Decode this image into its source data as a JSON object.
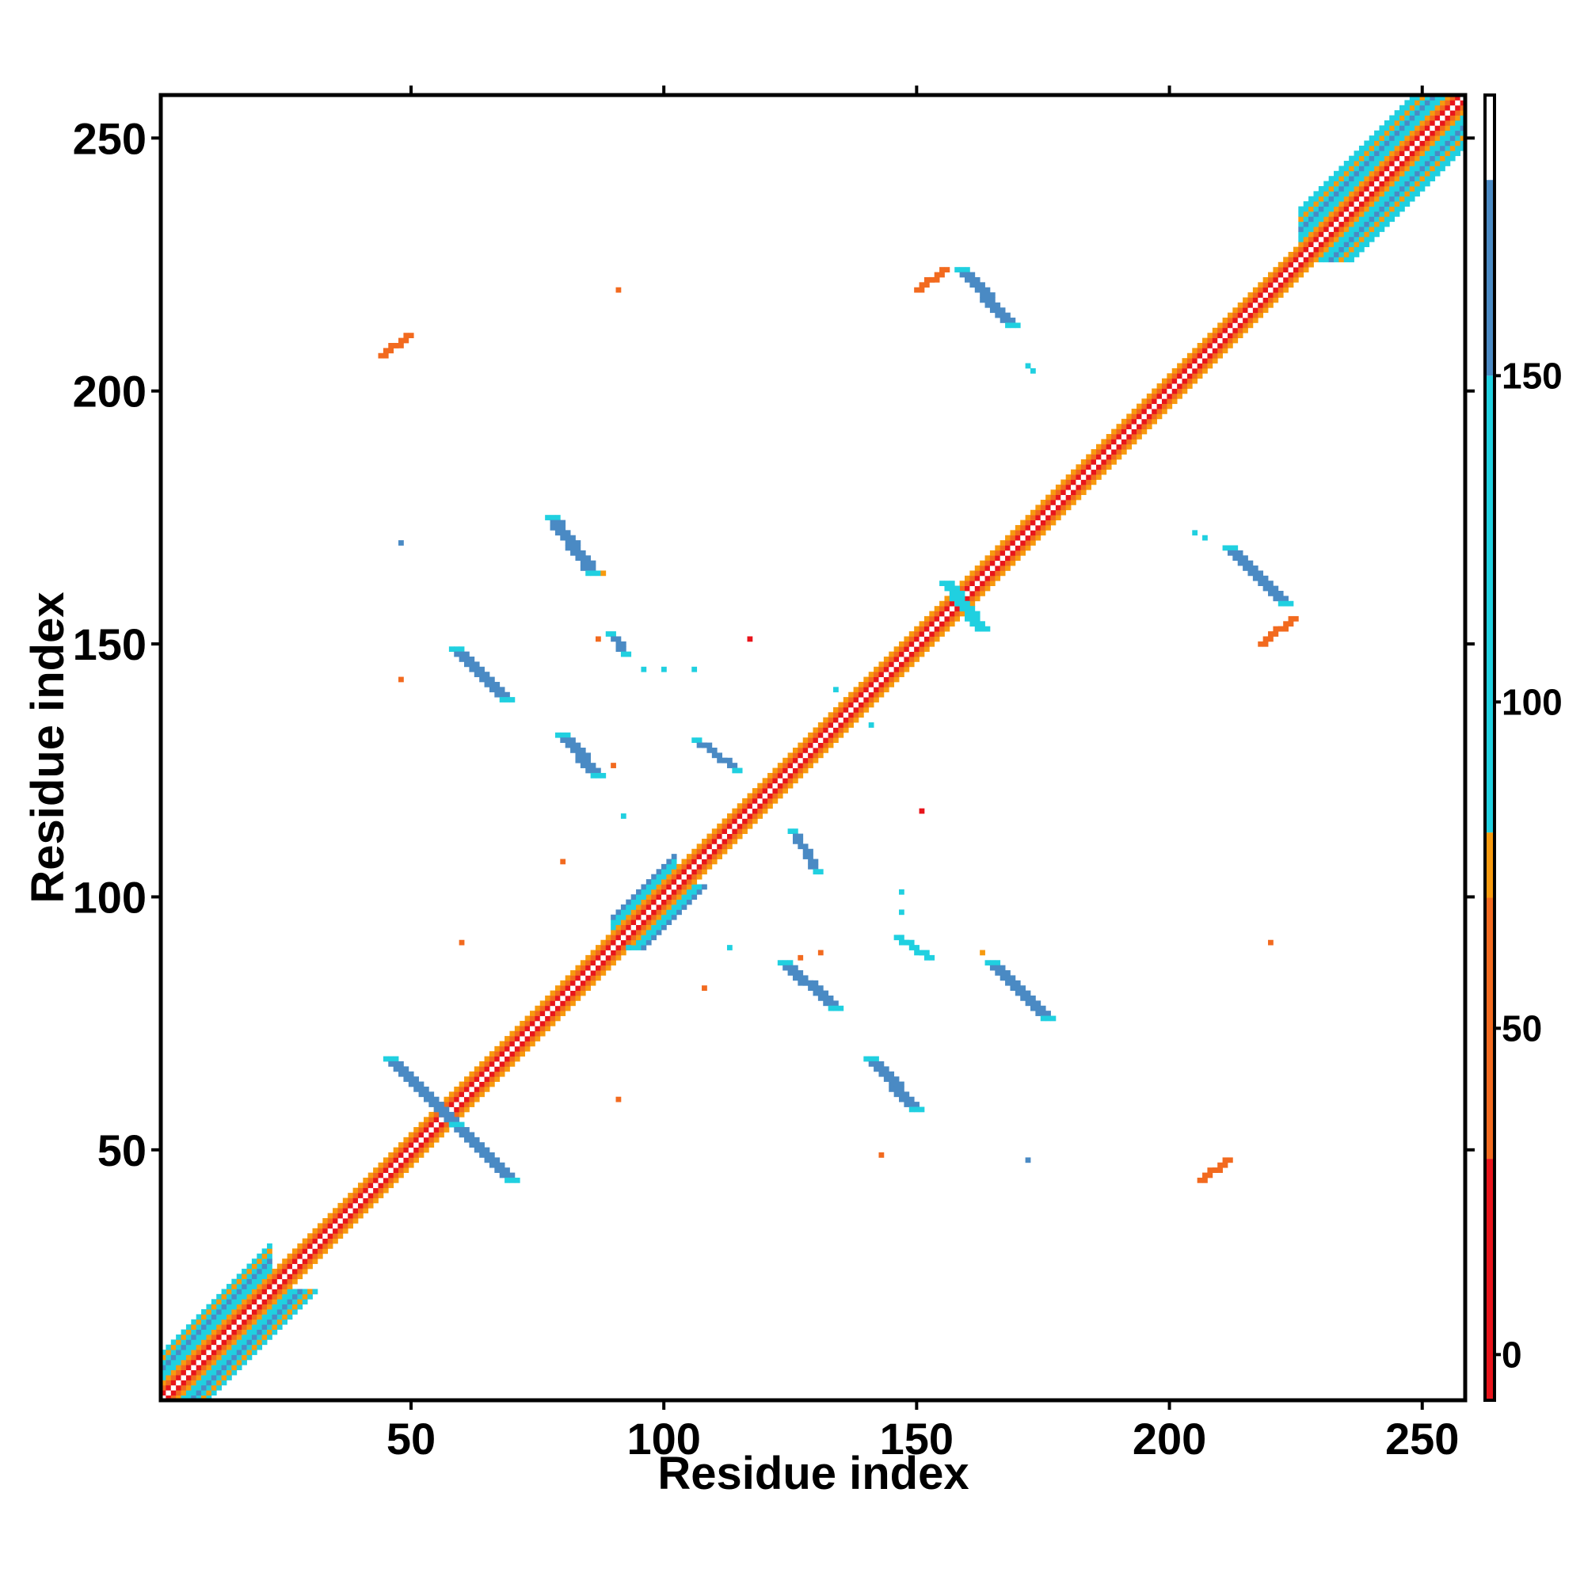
{
  "chart_data": {
    "type": "heatmap",
    "title": "",
    "xlabel": "Residue index",
    "ylabel": "Residue index",
    "xlim": [
      1,
      258
    ],
    "ylim": [
      1,
      258
    ],
    "xticks": [
      50,
      100,
      150,
      200,
      250
    ],
    "yticks": [
      50,
      100,
      150,
      200,
      250
    ],
    "grid": false,
    "colorbar": {
      "ticks": [
        0,
        50,
        100,
        150
      ],
      "range": [
        -7,
        193
      ],
      "bands": [
        {
          "from": -7,
          "to": 30,
          "color": "#e8141b"
        },
        {
          "from": 30,
          "to": 70,
          "color": "#f26a1f"
        },
        {
          "from": 70,
          "to": 80,
          "color": "#f79a0e"
        },
        {
          "from": 80,
          "to": 150,
          "color": "#20d0e0"
        },
        {
          "from": 150,
          "to": 180,
          "color": "#4a8ac4"
        },
        {
          "from": 180,
          "to": 193,
          "color": "#ffffff"
        }
      ]
    },
    "diagonal": {
      "from": 1,
      "to": 258
    },
    "diagonal_bulges": [
      {
        "from": 1,
        "to": 22,
        "width": 9
      },
      {
        "from": 90,
        "to": 102,
        "width": 6
      },
      {
        "from": 226,
        "to": 258,
        "width": 10
      }
    ],
    "contact_strips": [
      {
        "x": [
          45,
          58
        ],
        "y": [
          68,
          55
        ],
        "width": 3,
        "value": 160
      },
      {
        "x": [
          58,
          69
        ],
        "y": [
          55,
          44
        ],
        "width": 3,
        "value": 160
      },
      {
        "x": [
          58,
          68
        ],
        "y": [
          149,
          139
        ],
        "width": 3,
        "value": 160
      },
      {
        "x": [
          77,
          85
        ],
        "y": [
          175,
          164
        ],
        "width": 3,
        "value": 160
      },
      {
        "x": [
          79,
          86
        ],
        "y": [
          132,
          124
        ],
        "width": 3,
        "value": 160
      },
      {
        "x": [
          89,
          92
        ],
        "y": [
          152,
          148
        ],
        "width": 2,
        "value": 150
      },
      {
        "x": [
          106,
          114
        ],
        "y": [
          131,
          125
        ],
        "width": 2,
        "value": 150
      },
      {
        "x": [
          125,
          130
        ],
        "y": [
          113,
          105
        ],
        "width": 2,
        "value": 150
      },
      {
        "x": [
          123,
          133
        ],
        "y": [
          87,
          78
        ],
        "width": 3,
        "value": 160
      },
      {
        "x": [
          140,
          149
        ],
        "y": [
          68,
          58
        ],
        "width": 3,
        "value": 160
      },
      {
        "x": [
          164,
          175
        ],
        "y": [
          87,
          76
        ],
        "width": 3,
        "value": 160
      },
      {
        "x": [
          158,
          168
        ],
        "y": [
          224,
          213
        ],
        "width": 3,
        "value": 160
      },
      {
        "x": [
          211,
          222
        ],
        "y": [
          169,
          158
        ],
        "width": 3,
        "value": 160
      },
      {
        "x": [
          146,
          152
        ],
        "y": [
          92,
          88
        ],
        "width": 2,
        "value": 110
      },
      {
        "x": [
          155,
          162
        ],
        "y": [
          162,
          153
        ],
        "width": 3,
        "value": 110
      },
      {
        "x": [
          44,
          49
        ],
        "y": [
          207,
          211
        ],
        "width": 2,
        "value": 45
      },
      {
        "x": [
          150,
          155
        ],
        "y": [
          220,
          224
        ],
        "width": 2,
        "value": 45
      },
      {
        "x": [
          218,
          224
        ],
        "y": [
          150,
          155
        ],
        "width": 2,
        "value": 45
      },
      {
        "x": [
          206,
          211
        ],
        "y": [
          44,
          48
        ],
        "width": 2,
        "value": 45
      }
    ],
    "contact_points": [
      {
        "x": 172,
        "y": 205,
        "value": 110
      },
      {
        "x": 173,
        "y": 204,
        "value": 110
      },
      {
        "x": 205,
        "y": 172,
        "value": 110
      },
      {
        "x": 207,
        "y": 171,
        "value": 110
      },
      {
        "x": 113,
        "y": 90,
        "value": 110
      },
      {
        "x": 92,
        "y": 116,
        "value": 110
      },
      {
        "x": 96,
        "y": 145,
        "value": 110
      },
      {
        "x": 100,
        "y": 145,
        "value": 110
      },
      {
        "x": 106,
        "y": 145,
        "value": 110
      },
      {
        "x": 147,
        "y": 101,
        "value": 110
      },
      {
        "x": 147,
        "y": 97,
        "value": 110
      },
      {
        "x": 131,
        "y": 89,
        "value": 45
      },
      {
        "x": 127,
        "y": 88,
        "value": 45
      },
      {
        "x": 93,
        "y": 90,
        "value": 110
      },
      {
        "x": 48,
        "y": 170,
        "value": 160
      },
      {
        "x": 172,
        "y": 48,
        "value": 160
      },
      {
        "x": 87,
        "y": 151,
        "value": 45
      },
      {
        "x": 48,
        "y": 143,
        "value": 45
      },
      {
        "x": 90,
        "y": 126,
        "value": 45
      },
      {
        "x": 88,
        "y": 164,
        "value": 75
      },
      {
        "x": 80,
        "y": 107,
        "value": 45
      },
      {
        "x": 108,
        "y": 82,
        "value": 45
      },
      {
        "x": 143,
        "y": 49,
        "value": 45
      },
      {
        "x": 117,
        "y": 151,
        "value": 20
      },
      {
        "x": 151,
        "y": 117,
        "value": 20
      },
      {
        "x": 60,
        "y": 91,
        "value": 45
      },
      {
        "x": 91,
        "y": 60,
        "value": 45
      },
      {
        "x": 91,
        "y": 220,
        "value": 45
      },
      {
        "x": 220,
        "y": 91,
        "value": 45
      },
      {
        "x": 134,
        "y": 141,
        "value": 110
      },
      {
        "x": 141,
        "y": 134,
        "value": 110
      },
      {
        "x": 163,
        "y": 89,
        "value": 75
      }
    ]
  }
}
